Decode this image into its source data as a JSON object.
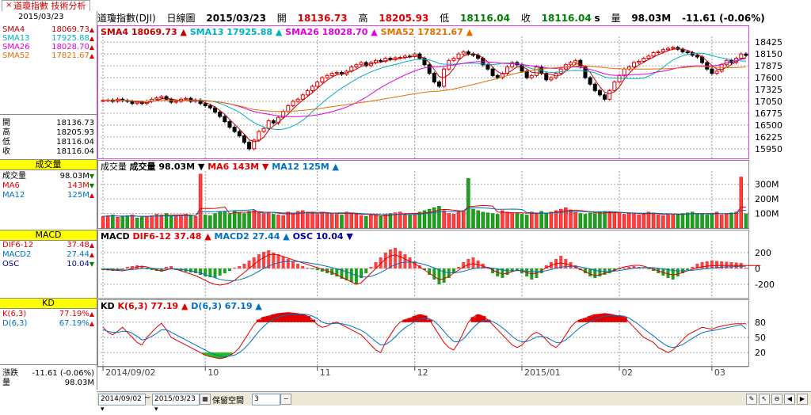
{
  "tab": {
    "label": "道瓊指數 技術分析",
    "close_glyph": "×"
  },
  "left": {
    "date": "2015/03/23",
    "sma": [
      {
        "label": "SMA4",
        "value": "18069.73",
        "dir": "up",
        "color": "#c00000"
      },
      {
        "label": "SMA13",
        "value": "17925.88",
        "dir": "up",
        "color": "#00b0c0"
      },
      {
        "label": "SMA26",
        "value": "18028.70",
        "dir": "up",
        "color": "#e000e0"
      },
      {
        "label": "SMA52",
        "value": "17821.67",
        "dir": "up",
        "color": "#e07000"
      }
    ],
    "ohlc": [
      {
        "label": "開",
        "value": "18136.73"
      },
      {
        "label": "高",
        "value": "18205.93"
      },
      {
        "label": "低",
        "value": "18116.04"
      },
      {
        "label": "收",
        "value": "18116.04"
      }
    ],
    "vol_header": "成交量",
    "vol": [
      {
        "label": "成交量",
        "value": "98.03M",
        "dir": "dn",
        "color": "#000000"
      },
      {
        "label": "MA6",
        "value": "143M",
        "dir": "dn",
        "color": "#e00000"
      },
      {
        "label": "MA12",
        "value": "125M",
        "dir": "up",
        "color": "#0070c0"
      }
    ],
    "macd_header": "MACD",
    "macd": [
      {
        "label": "DIF6-12",
        "value": "37.48",
        "dir": "up",
        "color": "#e00000"
      },
      {
        "label": "MACD2",
        "value": "27.44",
        "dir": "up",
        "color": "#0070c0"
      },
      {
        "label": "OSC",
        "value": "10.04",
        "dir": "dn",
        "color": "#0000a0"
      }
    ],
    "kd_header": "KD",
    "kd": [
      {
        "label": "K(6,3)",
        "value": "77.19%",
        "dir": "up",
        "color": "#e00000"
      },
      {
        "label": "D(6,3)",
        "value": "67.19%",
        "dir": "up",
        "color": "#0070c0"
      }
    ],
    "change": {
      "label": "漲跌",
      "value": "-11.61 (-0.06%)"
    },
    "volume": {
      "label": "量",
      "value": "98.03M"
    }
  },
  "title": {
    "name": "道瓊指數(DJI)",
    "period": "日線圖",
    "date": "2015/03/23",
    "open_label": "開",
    "open": "18136.73",
    "high_label": "高",
    "high": "18205.93",
    "low_label": "低",
    "low": "18116.04",
    "close_label": "收",
    "close": "18116.04",
    "close_suffix": "s",
    "vol_label": "量",
    "vol": "98.03M",
    "change": "-11.61 (-0.06%)"
  },
  "panels": {
    "price": {
      "label": "SMA4 18069.73",
      "label2": "SMA13 17925.88",
      "label3": "SMA26 18028.70",
      "label4": "SMA52 17821.67"
    },
    "volume": {
      "label": "成交量",
      "label1": "成交量 98.03M",
      "label2": "MA6 143M",
      "label3": "MA12 125M"
    },
    "macd": {
      "label": "MACD",
      "label1": "DIF6-12 37.48",
      "label2": "MACD2 27.44",
      "label3": "OSC 10.04"
    },
    "kd": {
      "label": "KD",
      "label1": "K(6,3) 77.19",
      "label2": "D(6,3) 67.19"
    }
  },
  "bottom": {
    "from": "2014/09/02",
    "tilde": "~",
    "to": "2015/03/23",
    "keep_label": "保留空間",
    "keep_value": "3"
  },
  "chart_data": [
    {
      "type": "candlestick",
      "yticks": [
        15950,
        16225,
        16500,
        16775,
        17050,
        17325,
        17600,
        17875,
        18150,
        18425
      ],
      "ylim": [
        15800,
        18520
      ],
      "xticks": [
        {
          "label": "2014/09/02",
          "i": 0
        },
        {
          "label": "10",
          "i": 21
        },
        {
          "label": "11",
          "i": 44
        },
        {
          "label": "12",
          "i": 64
        },
        {
          "label": "2015/01",
          "i": 86
        },
        {
          "label": "02",
          "i": 106
        },
        {
          "label": "03",
          "i": 125
        }
      ],
      "close": [
        17070,
        17080,
        17050,
        17100,
        17070,
        17050,
        17000,
        17030,
        17000,
        17050,
        17100,
        17130,
        17160,
        17100,
        17030,
        17050,
        17100,
        17120,
        17050,
        17080,
        17000,
        16950,
        16900,
        16800,
        16700,
        16580,
        16450,
        16350,
        16250,
        16100,
        15950,
        16150,
        16350,
        16420,
        16600,
        16550,
        16680,
        16820,
        16950,
        17050,
        17100,
        17200,
        17300,
        17400,
        17500,
        17600,
        17650,
        17700,
        17720,
        17680,
        17750,
        17850,
        17900,
        17950,
        17880,
        17950,
        18000,
        17980,
        18050,
        18020,
        18060,
        18070,
        18100,
        18090,
        18150,
        18050,
        17900,
        17700,
        17500,
        17400,
        17800,
        18000,
        18050,
        18150,
        18200,
        18150,
        18120,
        18050,
        17900,
        17800,
        17650,
        17600,
        17700,
        17850,
        17950,
        17900,
        17750,
        17600,
        17650,
        17850,
        17700,
        17550,
        17600,
        17700,
        17800,
        17900,
        17950,
        18000,
        17850,
        17600,
        17450,
        17300,
        17200,
        17100,
        17300,
        17500,
        17650,
        17800,
        17850,
        17950,
        17980,
        18050,
        18100,
        18180,
        18200,
        18250,
        18280,
        18300,
        18260,
        18200,
        18180,
        18120,
        18080,
        17950,
        17800,
        17700,
        17750,
        17900,
        18000,
        17950,
        18050,
        18150,
        18116
      ]
    },
    {
      "type": "bar",
      "yticks": [
        100,
        200,
        300
      ],
      "ylim": [
        0,
        380
      ],
      "unit": "M",
      "values": [
        80,
        85,
        90,
        75,
        80,
        85,
        90,
        70,
        75,
        80,
        85,
        95,
        90,
        100,
        80,
        85,
        90,
        95,
        85,
        80,
        370,
        90,
        85,
        100,
        110,
        115,
        95,
        120,
        110,
        100,
        115,
        120,
        110,
        100,
        105,
        95,
        90,
        85,
        110,
        100,
        115,
        120,
        110,
        100,
        95,
        110,
        105,
        100,
        95,
        90,
        110,
        100,
        95,
        85,
        80,
        90,
        85,
        80,
        95,
        100,
        105,
        110,
        100,
        90,
        95,
        110,
        120,
        130,
        140,
        150,
        120,
        100,
        95,
        110,
        120,
        340,
        130,
        120,
        110,
        105,
        100,
        95,
        120,
        110,
        100,
        105,
        95,
        90,
        110,
        100,
        115,
        100,
        110,
        120,
        130,
        140,
        125,
        110,
        100,
        95,
        105,
        100,
        110,
        115,
        110,
        105,
        100,
        95,
        105,
        100,
        90,
        95,
        110,
        100,
        90,
        85,
        100,
        95,
        90,
        100,
        105,
        110,
        100,
        95,
        90,
        100,
        110,
        90,
        100,
        105,
        110,
        350,
        98
      ],
      "down": [
        0,
        0,
        1,
        0,
        1,
        1,
        0,
        1,
        1,
        0,
        0,
        0,
        0,
        1,
        1,
        0,
        0,
        0,
        1,
        0,
        0,
        1,
        1,
        1,
        1,
        1,
        1,
        1,
        1,
        1,
        1,
        0,
        0,
        0,
        0,
        1,
        0,
        0,
        0,
        0,
        0,
        0,
        0,
        0,
        0,
        0,
        0,
        0,
        0,
        1,
        0,
        0,
        0,
        0,
        1,
        0,
        0,
        1,
        0,
        1,
        0,
        0,
        0,
        1,
        0,
        1,
        1,
        1,
        1,
        1,
        0,
        0,
        0,
        0,
        0,
        1,
        1,
        1,
        1,
        1,
        1,
        1,
        0,
        0,
        0,
        1,
        1,
        1,
        0,
        0,
        1,
        1,
        0,
        0,
        0,
        0,
        0,
        0,
        1,
        1,
        1,
        1,
        1,
        1,
        0,
        0,
        0,
        0,
        0,
        0,
        0,
        0,
        0,
        0,
        0,
        0,
        0,
        0,
        1,
        1,
        1,
        1,
        1,
        1,
        1,
        1,
        0,
        0,
        0,
        1,
        0,
        0,
        1
      ]
    },
    {
      "type": "bar",
      "yticks": [
        -200,
        0,
        200
      ],
      "ylim": [
        -330,
        330
      ],
      "osc": [
        -20,
        -25,
        -30,
        -15,
        -10,
        20,
        30,
        40,
        30,
        -10,
        -20,
        -30,
        -40,
        20,
        30,
        -20,
        -30,
        -40,
        -50,
        -60,
        -80,
        -100,
        -110,
        -120,
        -90,
        -60,
        -30,
        10,
        30,
        60,
        100,
        140,
        180,
        210,
        230,
        200,
        180,
        150,
        120,
        90,
        60,
        30,
        10,
        -10,
        -20,
        -40,
        -60,
        -80,
        -100,
        -130,
        -150,
        -170,
        -200,
        -120,
        -60,
        20,
        80,
        140,
        200,
        240,
        260,
        220,
        180,
        140,
        90,
        40,
        -20,
        -80,
        -140,
        -200,
        -180,
        -120,
        -60,
        20,
        80,
        120,
        140,
        100,
        60,
        20,
        -60,
        -100,
        -120,
        -80,
        -40,
        -20,
        -60,
        -100,
        -140,
        -120,
        -60,
        40,
        80,
        120,
        160,
        120,
        80,
        40,
        -20,
        -60,
        -100,
        -120,
        -100,
        -80,
        -60,
        -30,
        -10,
        10,
        20,
        30,
        20,
        10,
        -10,
        -30,
        -60,
        -90,
        -120,
        -140,
        -100,
        -60,
        -20,
        20,
        60,
        80,
        90,
        100,
        95,
        90,
        85,
        80,
        75,
        70,
        10
      ],
      "dif": [
        -10,
        -15,
        -20,
        -25,
        -30,
        -20,
        0,
        20,
        30,
        20,
        0,
        -20,
        -30,
        -20,
        0,
        -10,
        -30,
        -50,
        -70,
        -90,
        -120,
        -150,
        -180,
        -200,
        -210,
        -200,
        -180,
        -150,
        -100,
        -50,
        0,
        50,
        100,
        140,
        170,
        180,
        170,
        150,
        130,
        110,
        90,
        70,
        50,
        30,
        10,
        -10,
        -30,
        -50,
        -80,
        -110,
        -140,
        -170,
        -200,
        -180,
        -120,
        -60,
        0,
        60,
        120,
        160,
        170,
        150,
        120,
        90,
        60,
        20,
        -20,
        -60,
        -100,
        -140,
        -130,
        -100,
        -60,
        -20,
        20,
        50,
        60,
        50,
        30,
        10,
        -20,
        -50,
        -70,
        -60,
        -40,
        -20,
        -30,
        -50,
        -70,
        -60,
        -30,
        10,
        40,
        60,
        70,
        60,
        40,
        20,
        -10,
        -40,
        -70,
        -90,
        -80,
        -60,
        -40,
        -20,
        0,
        20,
        30,
        40,
        40,
        30,
        10,
        -10,
        -30,
        -50,
        -70,
        -80,
        -70,
        -50,
        -30,
        -10,
        10,
        20,
        30,
        35,
        36,
        37,
        37,
        37,
        37,
        37,
        37,
        37,
        37,
        37
      ],
      "mac": [
        -5,
        -8,
        -11,
        -15,
        -18,
        -19,
        -15,
        -8,
        0,
        4,
        3,
        -2,
        -8,
        -10,
        -8,
        -8,
        -12,
        -20,
        -30,
        -42,
        -58,
        -76,
        -97,
        -118,
        -137,
        -149,
        -154,
        -153,
        -142,
        -124,
        -99,
        -69,
        -35,
        0,
        30,
        55,
        73,
        84,
        90,
        91,
        88,
        82,
        73,
        63,
        52,
        40,
        26,
        12,
        -4,
        -22,
        -43,
        -65,
        -89,
        -105,
        -109,
        -99,
        -79,
        -51,
        -17,
        19,
        49,
        69,
        79,
        81,
        77,
        66,
        50,
        30,
        7,
        -21,
        -43,
        -54,
        -55,
        -48,
        -35,
        -18,
        -3,
        7,
        11,
        11,
        5,
        -6,
        -19,
        -27,
        -29,
        -27,
        -28,
        -32,
        -39,
        -43,
        -40,
        -28,
        -14,
        2,
        16,
        25,
        28,
        27,
        20,
        8,
        -7,
        -24,
        -35,
        -40,
        -40,
        -34,
        -26,
        -16,
        -7,
        2,
        9,
        13,
        13,
        10,
        3,
        -5,
        -15,
        -25,
        -30,
        -30,
        -28,
        -23,
        -16,
        -9,
        -2,
        5,
        11,
        16,
        20,
        23,
        25,
        27,
        27
      ]
    },
    {
      "type": "line",
      "yticks": [
        20,
        50,
        80
      ],
      "ylim": [
        0,
        100
      ],
      "k": [
        70,
        60,
        55,
        62,
        70,
        60,
        50,
        40,
        35,
        50,
        60,
        70,
        78,
        65,
        50,
        45,
        40,
        35,
        30,
        25,
        20,
        15,
        12,
        10,
        8,
        10,
        15,
        20,
        30,
        45,
        60,
        75,
        85,
        90,
        92,
        95,
        97,
        98,
        99,
        98,
        97,
        95,
        92,
        85,
        75,
        70,
        72,
        78,
        80,
        75,
        70,
        65,
        60,
        55,
        45,
        35,
        25,
        20,
        40,
        55,
        70,
        80,
        85,
        88,
        92,
        95,
        93,
        85,
        70,
        55,
        40,
        30,
        25,
        40,
        60,
        80,
        90,
        95,
        92,
        85,
        75,
        65,
        55,
        45,
        35,
        30,
        35,
        45,
        55,
        60,
        55,
        45,
        35,
        30,
        40,
        55,
        70,
        80,
        85,
        88,
        92,
        95,
        96,
        97,
        96,
        94,
        92,
        90,
        80,
        70,
        60,
        50,
        45,
        40,
        30,
        25,
        20,
        25,
        35,
        45,
        55,
        60,
        65,
        70,
        68,
        66,
        70,
        72,
        74,
        76,
        77,
        77,
        77
      ],
      "d": [
        65,
        62,
        60,
        60,
        62,
        62,
        58,
        52,
        45,
        47,
        52,
        58,
        65,
        65,
        60,
        55,
        50,
        45,
        40,
        35,
        30,
        25,
        20,
        16,
        13,
        12,
        13,
        15,
        20,
        28,
        38,
        50,
        62,
        72,
        80,
        86,
        90,
        93,
        95,
        96,
        96,
        96,
        95,
        92,
        87,
        80,
        77,
        77,
        78,
        77,
        75,
        72,
        68,
        64,
        58,
        50,
        42,
        35,
        36,
        42,
        51,
        61,
        69,
        75,
        81,
        86,
        88,
        87,
        82,
        73,
        62,
        51,
        42,
        41,
        47,
        58,
        69,
        78,
        83,
        84,
        81,
        76,
        69,
        61,
        52,
        45,
        41,
        42,
        46,
        51,
        52,
        50,
        45,
        40,
        40,
        45,
        53,
        62,
        70,
        76,
        81,
        86,
        89,
        92,
        93,
        93,
        93,
        92,
        88,
        82,
        75,
        67,
        60,
        53,
        45,
        38,
        32,
        30,
        32,
        36,
        42,
        48,
        54,
        59,
        62,
        63,
        65,
        67,
        69,
        71,
        73,
        75,
        67
      ]
    }
  ]
}
